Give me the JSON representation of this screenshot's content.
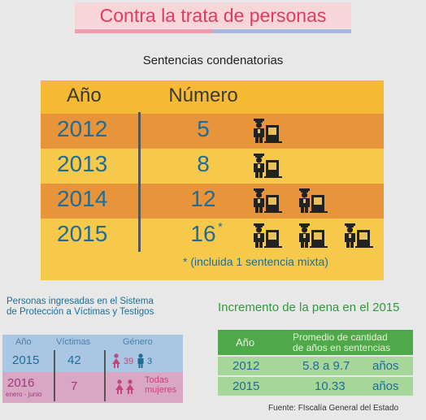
{
  "title": "Contra la trata de personas",
  "sentencias": {
    "heading": "Sentencias condenatorias",
    "col_year": "Año",
    "col_number": "Número",
    "note": "* (incluida 1 sentencia mixta)",
    "asterisk": "*"
  },
  "sistema": {
    "heading_line1": "Personas ingresadas en el Sistema",
    "heading_line2": "de Protección a Víctimas y Testigos",
    "col_year": "Año",
    "col_victims": "Víctimas",
    "col_gender": "Género",
    "rows": [
      {
        "year": "2015",
        "victims": "42",
        "women": "39",
        "men": "3"
      },
      {
        "year": "2016",
        "sub": "enero - junio",
        "victims": "7",
        "gender_text_1": "Todas",
        "gender_text_2": "mujeres"
      }
    ]
  },
  "pena": {
    "heading": "Incremento de la pena en el 2015",
    "col_year": "Año",
    "col_avg_line1": "Promedio de cantidad",
    "col_avg_line2": "de años en sentencias",
    "rows": [
      {
        "year": "2012",
        "value": "5.8 a 9.7",
        "unit": "años"
      },
      {
        "year": "2015",
        "value": "10.33",
        "unit": "años"
      }
    ]
  },
  "source": "Fuente: FIscalía General del Estado",
  "colors": {
    "orange": "#e8943a",
    "yellow": "#f7c94a",
    "header_yellow": "#f6b934",
    "blue": "#1f6d97",
    "pink": "#e23a5e",
    "green": "#2e9a3a"
  },
  "chart_data": {
    "type": "table",
    "categories": [
      "2012",
      "2013",
      "2014",
      "2015"
    ],
    "values": [
      5,
      8,
      12,
      16
    ],
    "value_labels": [
      "5",
      "8",
      "12",
      "16"
    ],
    "icons_per_row": [
      1,
      1,
      2,
      3
    ],
    "icon": "police-officer-icon"
  }
}
